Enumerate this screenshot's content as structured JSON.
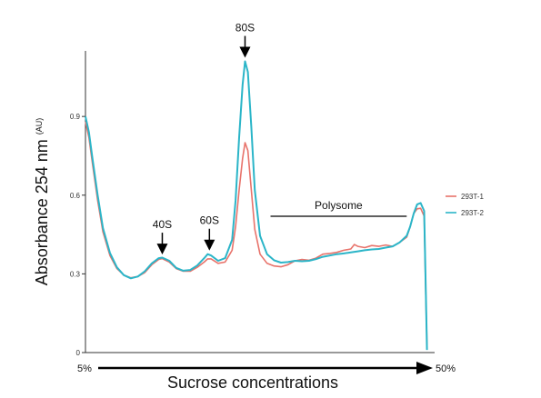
{
  "chart_data": {
    "type": "line",
    "xlabel": "Sucrose concentrations",
    "x_start_label": "5%",
    "x_end_label": "50%",
    "ylabel_main": "Absorbance 254 nm",
    "ylabel_unit": "(AU)",
    "ylim": [
      0,
      1.15
    ],
    "xlim": [
      0,
      100
    ],
    "yticks": [
      "0",
      "0.3",
      "0.6",
      "0.9"
    ],
    "ytick_values": [
      0,
      0.3,
      0.6,
      0.9
    ],
    "legend_position": "right",
    "grid": false,
    "series": [
      {
        "name": "293T-1",
        "color": "#e8736b",
        "points": [
          [
            0,
            0.88
          ],
          [
            1,
            0.82
          ],
          [
            2,
            0.72
          ],
          [
            3.5,
            0.58
          ],
          [
            5,
            0.46
          ],
          [
            7,
            0.37
          ],
          [
            9,
            0.32
          ],
          [
            11,
            0.295
          ],
          [
            13,
            0.285
          ],
          [
            15,
            0.29
          ],
          [
            17,
            0.305
          ],
          [
            19,
            0.335
          ],
          [
            21,
            0.355
          ],
          [
            22,
            0.358
          ],
          [
            24,
            0.345
          ],
          [
            26,
            0.32
          ],
          [
            28,
            0.31
          ],
          [
            30,
            0.31
          ],
          [
            32,
            0.325
          ],
          [
            34,
            0.345
          ],
          [
            35,
            0.357
          ],
          [
            36,
            0.357
          ],
          [
            38,
            0.34
          ],
          [
            40,
            0.345
          ],
          [
            42,
            0.39
          ],
          [
            43,
            0.48
          ],
          [
            44,
            0.62
          ],
          [
            45,
            0.74
          ],
          [
            45.7,
            0.8
          ],
          [
            46.5,
            0.77
          ],
          [
            47.5,
            0.62
          ],
          [
            48.5,
            0.47
          ],
          [
            50,
            0.375
          ],
          [
            52,
            0.34
          ],
          [
            54,
            0.33
          ],
          [
            56,
            0.327
          ],
          [
            58,
            0.335
          ],
          [
            60,
            0.35
          ],
          [
            62,
            0.355
          ],
          [
            64,
            0.352
          ],
          [
            66,
            0.36
          ],
          [
            68,
            0.375
          ],
          [
            70,
            0.378
          ],
          [
            72,
            0.382
          ],
          [
            74,
            0.39
          ],
          [
            76,
            0.395
          ],
          [
            77,
            0.412
          ],
          [
            78,
            0.405
          ],
          [
            80,
            0.4
          ],
          [
            82,
            0.408
          ],
          [
            84,
            0.405
          ],
          [
            86,
            0.41
          ],
          [
            88,
            0.405
          ],
          [
            90,
            0.42
          ],
          [
            92,
            0.44
          ],
          [
            93,
            0.48
          ],
          [
            94,
            0.53
          ],
          [
            95,
            0.548
          ],
          [
            96,
            0.55
          ],
          [
            97,
            0.52
          ],
          [
            97.5,
            0.2
          ],
          [
            97.8,
            0.03
          ]
        ]
      },
      {
        "name": "293T-2",
        "color": "#2bb5c8",
        "points": [
          [
            0,
            0.9
          ],
          [
            1,
            0.84
          ],
          [
            2,
            0.74
          ],
          [
            3.5,
            0.6
          ],
          [
            5,
            0.475
          ],
          [
            7,
            0.38
          ],
          [
            9,
            0.325
          ],
          [
            11,
            0.295
          ],
          [
            13,
            0.283
          ],
          [
            15,
            0.29
          ],
          [
            17,
            0.31
          ],
          [
            19,
            0.34
          ],
          [
            21,
            0.36
          ],
          [
            22,
            0.362
          ],
          [
            24,
            0.35
          ],
          [
            26,
            0.323
          ],
          [
            28,
            0.312
          ],
          [
            30,
            0.315
          ],
          [
            32,
            0.332
          ],
          [
            34,
            0.36
          ],
          [
            35,
            0.375
          ],
          [
            36,
            0.37
          ],
          [
            38,
            0.35
          ],
          [
            40,
            0.36
          ],
          [
            42,
            0.43
          ],
          [
            43,
            0.58
          ],
          [
            44,
            0.82
          ],
          [
            45,
            1.02
          ],
          [
            45.7,
            1.11
          ],
          [
            46.5,
            1.07
          ],
          [
            47.5,
            0.86
          ],
          [
            48.5,
            0.62
          ],
          [
            50,
            0.445
          ],
          [
            52,
            0.375
          ],
          [
            54,
            0.352
          ],
          [
            56,
            0.343
          ],
          [
            58,
            0.345
          ],
          [
            60,
            0.35
          ],
          [
            62,
            0.348
          ],
          [
            64,
            0.35
          ],
          [
            66,
            0.356
          ],
          [
            68,
            0.365
          ],
          [
            70,
            0.37
          ],
          [
            72,
            0.375
          ],
          [
            74,
            0.378
          ],
          [
            76,
            0.382
          ],
          [
            78,
            0.386
          ],
          [
            80,
            0.39
          ],
          [
            82,
            0.393
          ],
          [
            84,
            0.395
          ],
          [
            86,
            0.4
          ],
          [
            88,
            0.405
          ],
          [
            90,
            0.42
          ],
          [
            92,
            0.445
          ],
          [
            93,
            0.48
          ],
          [
            94,
            0.53
          ],
          [
            95,
            0.565
          ],
          [
            96,
            0.57
          ],
          [
            97,
            0.54
          ],
          [
            97.5,
            0.22
          ],
          [
            97.8,
            0.01
          ]
        ]
      }
    ],
    "annotations": [
      {
        "label": "40S",
        "x": 22,
        "peak_y": 0.36
      },
      {
        "label": "60S",
        "x": 35.5,
        "peak_y": 0.375
      },
      {
        "label": "80S",
        "x": 45.7,
        "peak_y": 1.11
      }
    ],
    "bracket": {
      "label": "Polysome",
      "x_start": 53,
      "x_end": 92
    }
  }
}
